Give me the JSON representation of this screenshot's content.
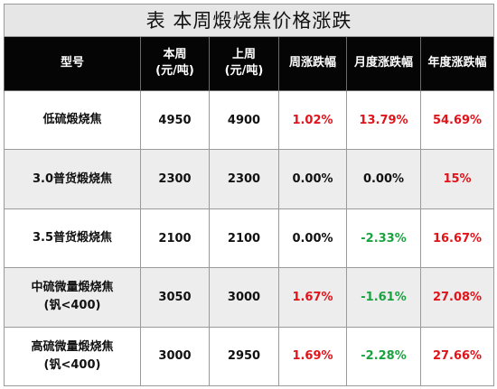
{
  "title": "表 本周煅烧焦价格涨跌",
  "headers": {
    "model": "型号",
    "this_week_line1": "本周",
    "this_week_line2": "(元/吨)",
    "last_week_line1": "上周",
    "last_week_line2": "(元/吨)",
    "weekly_change": "周涨跌幅",
    "monthly_change": "月度涨跌幅",
    "yearly_change": "年度涨跌幅"
  },
  "rows": [
    {
      "model_line1": "低硫煅烧焦",
      "model_line2": "",
      "this_week": "4950",
      "last_week": "4900",
      "weekly": "1.02%",
      "monthly": "13.79%",
      "yearly": "54.69%"
    },
    {
      "model_line1": "3.0普货煅烧焦",
      "model_line2": "",
      "this_week": "2300",
      "last_week": "2300",
      "weekly": "0.00%",
      "monthly": "0.00%",
      "yearly": "15%"
    },
    {
      "model_line1": "3.5普货煅烧焦",
      "model_line2": "",
      "this_week": "2100",
      "last_week": "2100",
      "weekly": "0.00%",
      "monthly": "-2.33%",
      "yearly": "16.67%"
    },
    {
      "model_line1": "中硫微量煅烧焦",
      "model_line2": "(钒<400)",
      "this_week": "3050",
      "last_week": "3000",
      "weekly": "1.67%",
      "monthly": "-1.61%",
      "yearly": "27.08%"
    },
    {
      "model_line1": "高硫微量煅烧焦",
      "model_line2": "(钒<400)",
      "this_week": "3000",
      "last_week": "2950",
      "weekly": "1.69%",
      "monthly": "-2.28%",
      "yearly": "27.66%"
    }
  ],
  "colors": {
    "rise": "#e0141b",
    "fall": "#18a33f",
    "flat": "#111111",
    "header_bg": "#050505",
    "title_bg": "#e6e6e6",
    "shaded_row_bg": "#ededed"
  }
}
